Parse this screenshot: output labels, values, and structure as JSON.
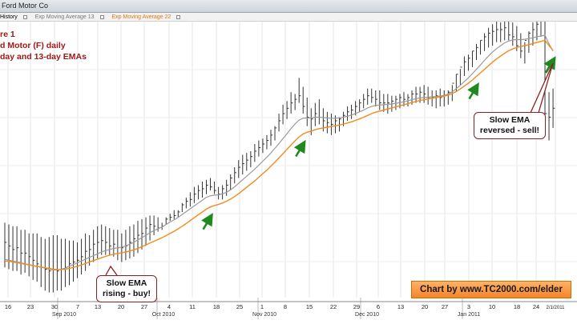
{
  "window": {
    "title": "Ford Motor Co"
  },
  "legend": {
    "items": [
      {
        "label": "History",
        "color": "#333333"
      },
      {
        "label": "Exp Moving Average 13",
        "color": "#888888"
      },
      {
        "label": "Exp Moving Average 22",
        "color": "#f08c1e"
      }
    ]
  },
  "figure_text": [
    "re 1",
    "d Motor (F) daily",
    "day and 13-day EMAs"
  ],
  "callouts": {
    "buy": [
      "Slow EMA",
      "rising - buy!"
    ],
    "sell": [
      "Slow EMA",
      "reversed - sell!"
    ]
  },
  "credit": "Chart by www.TC2000.com/elder",
  "colors": {
    "price_bars": "#333333",
    "ema13": "#9a9a9a",
    "ema22": "#f08c1e",
    "arrows": "#1e8a1e",
    "callout_border": "#8b2020",
    "figure_text": "#a01818"
  },
  "chart_data": {
    "type": "line",
    "title": "",
    "xlabel": "",
    "ylabel": "",
    "grid": true,
    "x_ticks": {
      "days": [
        "16",
        "23",
        "30",
        "7",
        "13",
        "20",
        "27",
        "4",
        "11",
        "18",
        "25",
        "1",
        "8",
        "15",
        "22",
        "29",
        "6",
        "13",
        "20",
        "27",
        "3",
        "10",
        "18",
        "24",
        "2/1/2011"
      ],
      "months": [
        "Sep 2010",
        "Oct 2010",
        "Nov 2010",
        "Dec 2010",
        "Jan 2011"
      ]
    },
    "series": [
      {
        "name": "History",
        "render": "ohlc",
        "high": [
          10.65,
          10.6,
          10.55,
          10.55,
          10.45,
          10.45,
          10.35,
          10.35,
          10.35,
          10.25,
          10.2,
          10.25,
          10.3,
          10.3,
          10.2,
          10.2,
          10.15,
          10.15,
          10.1,
          10.2,
          10.35,
          10.3,
          10.45,
          10.55,
          10.6,
          10.55,
          10.5,
          10.45,
          10.45,
          10.35,
          10.45,
          10.55,
          10.6,
          10.7,
          10.75,
          10.8,
          10.85,
          10.85,
          10.8,
          10.65,
          10.8,
          10.9,
          11.0,
          11.0,
          11.2,
          11.35,
          11.5,
          11.65,
          11.7,
          11.8,
          11.85,
          11.9,
          11.8,
          11.65,
          11.7,
          11.85,
          12.0,
          12.2,
          12.4,
          12.55,
          12.6,
          12.65,
          12.85,
          12.95,
          13.0,
          13.1,
          13.25,
          13.35,
          13.7,
          13.95,
          14.05,
          14.3,
          14.25,
          14.7,
          14.45,
          14.15,
          13.85,
          14.0,
          14.1,
          13.85,
          13.75,
          13.7,
          13.65,
          13.6,
          13.75,
          13.9,
          13.95,
          14.05,
          14.1,
          14.25,
          14.4,
          14.4,
          14.35,
          14.35,
          14.25,
          14.25,
          14.2,
          14.2,
          14.25,
          14.3,
          14.25,
          14.35,
          14.45,
          14.45,
          14.5,
          14.45,
          14.35,
          14.35,
          14.4,
          14.35,
          14.35,
          14.5,
          14.8,
          14.95,
          15.3,
          15.35,
          15.45,
          15.65,
          15.75,
          15.95,
          16.1,
          16.2,
          16.3,
          16.25,
          16.3,
          16.35,
          16.25,
          16.15,
          15.95,
          15.7,
          16.0,
          16.25,
          16.3,
          16.4,
          16.7,
          14.3,
          14.4
        ],
        "low": [
          9.4,
          9.35,
          9.3,
          9.3,
          9.2,
          9.25,
          9.15,
          9.05,
          9.0,
          8.85,
          8.75,
          8.7,
          8.7,
          8.75,
          8.75,
          8.85,
          8.9,
          9.0,
          9.1,
          9.2,
          9.3,
          9.45,
          9.55,
          9.65,
          9.75,
          9.75,
          9.75,
          9.7,
          9.6,
          9.55,
          9.6,
          9.65,
          9.7,
          9.8,
          9.9,
          10.0,
          10.15,
          10.3,
          10.4,
          10.45,
          10.6,
          10.7,
          10.75,
          10.8,
          10.95,
          11.05,
          11.1,
          11.2,
          11.3,
          11.35,
          11.45,
          11.55,
          11.45,
          11.3,
          11.3,
          11.4,
          11.55,
          11.75,
          11.9,
          12.0,
          12.1,
          12.2,
          12.35,
          12.5,
          12.6,
          12.7,
          12.8,
          12.95,
          13.2,
          13.4,
          13.55,
          13.7,
          13.8,
          14.0,
          13.7,
          13.35,
          13.1,
          13.35,
          13.4,
          13.2,
          13.15,
          13.1,
          13.15,
          13.2,
          13.35,
          13.5,
          13.55,
          13.65,
          13.75,
          13.85,
          13.95,
          14.0,
          13.9,
          13.8,
          13.75,
          13.7,
          13.75,
          13.8,
          13.85,
          13.9,
          13.9,
          13.95,
          14.0,
          14.0,
          14.0,
          13.95,
          13.9,
          13.85,
          13.9,
          13.9,
          13.95,
          14.05,
          14.3,
          14.5,
          14.75,
          14.9,
          15.0,
          15.2,
          15.35,
          15.45,
          15.55,
          15.6,
          15.7,
          15.7,
          15.75,
          15.75,
          15.6,
          15.45,
          15.25,
          15.1,
          15.4,
          15.6,
          15.75,
          15.85,
          13.2,
          12.95,
          13.3
        ],
        "close": [
          10.1,
          10.0,
          9.9,
          9.95,
          9.8,
          9.8,
          9.7,
          9.6,
          9.5,
          9.4,
          9.35,
          9.3,
          9.35,
          9.3,
          9.35,
          9.4,
          9.5,
          9.55,
          9.6,
          9.7,
          9.85,
          9.9,
          10.05,
          10.1,
          10.15,
          10.1,
          10.0,
          10.05,
          9.95,
          9.95,
          10.0,
          10.1,
          10.2,
          10.3,
          10.35,
          10.5,
          10.6,
          10.55,
          10.5,
          10.55,
          10.75,
          10.8,
          10.85,
          10.95,
          11.15,
          11.25,
          11.3,
          11.45,
          11.55,
          11.6,
          11.7,
          11.65,
          11.55,
          11.45,
          11.6,
          11.7,
          11.9,
          12.05,
          12.2,
          12.3,
          12.4,
          12.5,
          12.65,
          12.75,
          12.85,
          12.95,
          13.1,
          13.3,
          13.5,
          13.7,
          13.85,
          14.0,
          14.1,
          14.2,
          13.9,
          13.6,
          13.55,
          13.7,
          13.6,
          13.5,
          13.45,
          13.4,
          13.5,
          13.55,
          13.65,
          13.75,
          13.8,
          13.9,
          14.0,
          14.1,
          14.2,
          14.15,
          14.1,
          14.0,
          14.0,
          14.0,
          14.05,
          14.1,
          14.15,
          14.1,
          14.15,
          14.25,
          14.25,
          14.3,
          14.25,
          14.15,
          14.15,
          14.2,
          14.15,
          14.2,
          14.3,
          14.55,
          14.8,
          15.0,
          15.15,
          15.25,
          15.45,
          15.55,
          15.75,
          15.85,
          15.95,
          16.0,
          16.05,
          16.05,
          16.1,
          15.9,
          15.85,
          15.6,
          15.45,
          15.75,
          15.95,
          16.05,
          16.2,
          16.3,
          13.7,
          13.6,
          13.85
        ]
      },
      {
        "name": "Exp Moving Average 13",
        "render": "line",
        "values": [
          9.63,
          9.6,
          9.58,
          9.55,
          9.53,
          9.5,
          9.48,
          9.45,
          9.43,
          9.4,
          9.38,
          9.35,
          9.33,
          9.33,
          9.35,
          9.38,
          9.43,
          9.48,
          9.53,
          9.58,
          9.63,
          9.68,
          9.73,
          9.78,
          9.83,
          9.87,
          9.9,
          9.93,
          9.95,
          9.97,
          10.0,
          10.05,
          10.1,
          10.17,
          10.23,
          10.3,
          10.37,
          10.43,
          10.48,
          10.53,
          10.6,
          10.67,
          10.73,
          10.8,
          10.88,
          10.96,
          11.04,
          11.12,
          11.2,
          11.28,
          11.36,
          11.4,
          11.42,
          11.43,
          11.46,
          11.5,
          11.57,
          11.65,
          11.75,
          11.85,
          11.95,
          12.05,
          12.15,
          12.26,
          12.37,
          12.48,
          12.6,
          12.73,
          12.86,
          13.0,
          13.14,
          13.28,
          13.41,
          13.52,
          13.57,
          13.58,
          13.58,
          13.6,
          13.6,
          13.59,
          13.58,
          13.57,
          13.57,
          13.58,
          13.6,
          13.63,
          13.66,
          13.7,
          13.75,
          13.8,
          13.86,
          13.9,
          13.93,
          13.94,
          13.95,
          13.96,
          13.97,
          13.99,
          14.01,
          14.03,
          14.06,
          14.09,
          14.12,
          14.14,
          14.15,
          14.16,
          14.17,
          14.18,
          14.19,
          14.21,
          14.25,
          14.31,
          14.4,
          14.49,
          14.6,
          14.7,
          14.82,
          14.94,
          15.06,
          15.19,
          15.31,
          15.42,
          15.52,
          15.6,
          15.68,
          15.73,
          15.76,
          15.77,
          15.77,
          15.78,
          15.8,
          15.82,
          15.85,
          15.87,
          15.89,
          15.65,
          15.45
        ]
      },
      {
        "name": "Exp Moving Average 22",
        "render": "line",
        "values": [
          9.58,
          9.57,
          9.55,
          9.53,
          9.51,
          9.49,
          9.47,
          9.45,
          9.43,
          9.41,
          9.39,
          9.37,
          9.35,
          9.34,
          9.34,
          9.35,
          9.37,
          9.4,
          9.43,
          9.47,
          9.51,
          9.55,
          9.59,
          9.63,
          9.67,
          9.71,
          9.74,
          9.77,
          9.79,
          9.81,
          9.83,
          9.86,
          9.89,
          9.93,
          9.98,
          10.03,
          10.08,
          10.13,
          10.18,
          10.23,
          10.29,
          10.35,
          10.41,
          10.48,
          10.55,
          10.63,
          10.71,
          10.79,
          10.87,
          10.95,
          11.03,
          11.09,
          11.13,
          11.16,
          11.2,
          11.25,
          11.31,
          11.38,
          11.46,
          11.55,
          11.64,
          11.73,
          11.82,
          11.92,
          12.02,
          12.12,
          12.23,
          12.34,
          12.46,
          12.58,
          12.7,
          12.82,
          12.94,
          13.05,
          13.13,
          13.18,
          13.21,
          13.25,
          13.28,
          13.3,
          13.32,
          13.34,
          13.36,
          13.38,
          13.41,
          13.44,
          13.47,
          13.51,
          13.55,
          13.6,
          13.65,
          13.7,
          13.74,
          13.77,
          13.8,
          13.83,
          13.86,
          13.89,
          13.92,
          13.95,
          13.98,
          14.01,
          14.04,
          14.07,
          14.09,
          14.11,
          14.13,
          14.15,
          14.17,
          14.19,
          14.22,
          14.26,
          14.32,
          14.39,
          14.47,
          14.55,
          14.64,
          14.74,
          14.84,
          14.94,
          15.04,
          15.14,
          15.23,
          15.31,
          15.39,
          15.46,
          15.51,
          15.55,
          15.58,
          15.6,
          15.63,
          15.66,
          15.69,
          15.72,
          15.75,
          15.6,
          15.47
        ]
      }
    ],
    "annotations": [
      {
        "type": "arrow",
        "at": 51
      },
      {
        "type": "arrow",
        "at": 74
      },
      {
        "type": "arrow",
        "at": 117
      },
      {
        "type": "arrow",
        "at": 145
      },
      {
        "type": "arrow",
        "at": 158
      },
      {
        "type": "arrow",
        "at": 185
      }
    ]
  }
}
